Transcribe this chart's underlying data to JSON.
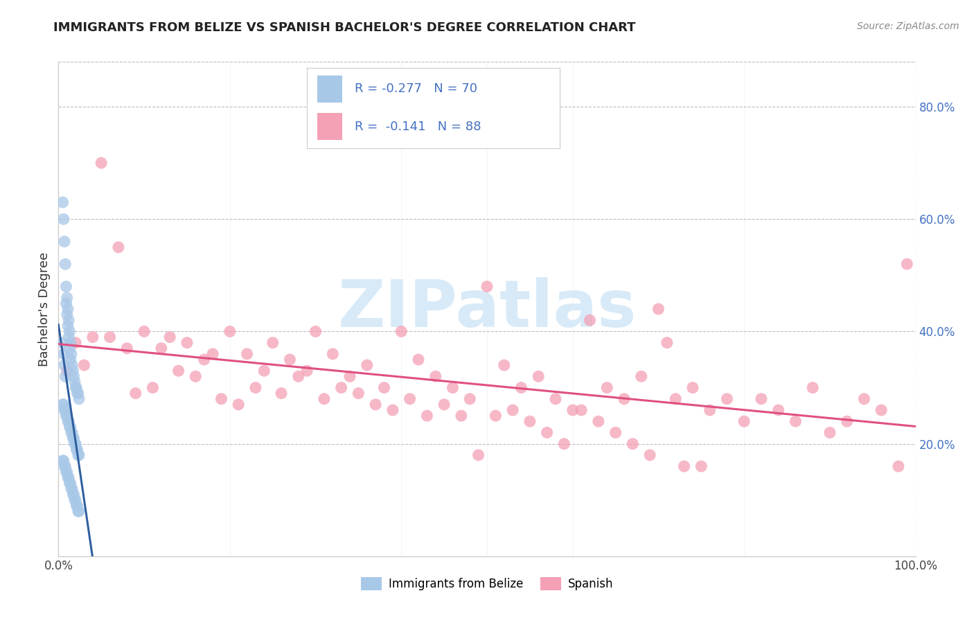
{
  "title": "IMMIGRANTS FROM BELIZE VS SPANISH BACHELOR'S DEGREE CORRELATION CHART",
  "source": "Source: ZipAtlas.com",
  "ylabel": "Bachelor's Degree",
  "legend_label_1": "Immigrants from Belize",
  "legend_label_2": "Spanish",
  "r1": -0.277,
  "n1": 70,
  "r2": -0.141,
  "n2": 88,
  "color_blue": "#a8c8e8",
  "color_pink": "#f4a0b5",
  "line_color_blue": "#3060a0",
  "line_color_pink": "#e05080",
  "watermark_color": "#d8eaf8",
  "xlim": [
    0.0,
    1.0
  ],
  "ylim": [
    0.0,
    0.88
  ],
  "blue_scatter_x": [
    0.005,
    0.006,
    0.007,
    0.008,
    0.009,
    0.01,
    0.011,
    0.012,
    0.013,
    0.014,
    0.015,
    0.016,
    0.017,
    0.018,
    0.019,
    0.02,
    0.021,
    0.022,
    0.023,
    0.024,
    0.005,
    0.006,
    0.007,
    0.008,
    0.009,
    0.01,
    0.011,
    0.012,
    0.013,
    0.014,
    0.015,
    0.016,
    0.017,
    0.018,
    0.019,
    0.02,
    0.021,
    0.022,
    0.023,
    0.024,
    0.005,
    0.006,
    0.007,
    0.008,
    0.009,
    0.01,
    0.011,
    0.012,
    0.013,
    0.014,
    0.015,
    0.016,
    0.017,
    0.018,
    0.019,
    0.02,
    0.021,
    0.022,
    0.023,
    0.024,
    0.005,
    0.006,
    0.007,
    0.008,
    0.009,
    0.01,
    0.011,
    0.012,
    0.013,
    0.014
  ],
  "blue_scatter_y": [
    0.63,
    0.6,
    0.56,
    0.52,
    0.48,
    0.46,
    0.44,
    0.42,
    0.4,
    0.38,
    0.36,
    0.34,
    0.33,
    0.32,
    0.31,
    0.3,
    0.3,
    0.29,
    0.29,
    0.28,
    0.27,
    0.27,
    0.26,
    0.26,
    0.25,
    0.25,
    0.24,
    0.24,
    0.23,
    0.23,
    0.22,
    0.22,
    0.21,
    0.21,
    0.2,
    0.2,
    0.19,
    0.19,
    0.18,
    0.18,
    0.17,
    0.17,
    0.16,
    0.16,
    0.15,
    0.15,
    0.14,
    0.14,
    0.13,
    0.13,
    0.12,
    0.12,
    0.11,
    0.11,
    0.1,
    0.1,
    0.09,
    0.09,
    0.08,
    0.08,
    0.38,
    0.36,
    0.34,
    0.32,
    0.45,
    0.43,
    0.41,
    0.39,
    0.37,
    0.35
  ],
  "pink_scatter_x": [
    0.01,
    0.02,
    0.04,
    0.05,
    0.07,
    0.08,
    0.09,
    0.1,
    0.12,
    0.13,
    0.15,
    0.17,
    0.18,
    0.2,
    0.22,
    0.24,
    0.25,
    0.27,
    0.29,
    0.3,
    0.32,
    0.34,
    0.36,
    0.38,
    0.4,
    0.42,
    0.44,
    0.46,
    0.48,
    0.5,
    0.52,
    0.54,
    0.56,
    0.58,
    0.6,
    0.62,
    0.64,
    0.66,
    0.68,
    0.7,
    0.72,
    0.74,
    0.76,
    0.78,
    0.8,
    0.82,
    0.84,
    0.86,
    0.88,
    0.9,
    0.92,
    0.94,
    0.96,
    0.98,
    0.03,
    0.06,
    0.11,
    0.14,
    0.16,
    0.19,
    0.21,
    0.23,
    0.26,
    0.28,
    0.31,
    0.33,
    0.35,
    0.37,
    0.39,
    0.41,
    0.43,
    0.45,
    0.47,
    0.49,
    0.51,
    0.53,
    0.55,
    0.57,
    0.59,
    0.61,
    0.63,
    0.65,
    0.67,
    0.69,
    0.71,
    0.73,
    0.75,
    0.99
  ],
  "pink_scatter_y": [
    0.33,
    0.38,
    0.39,
    0.7,
    0.55,
    0.37,
    0.29,
    0.4,
    0.37,
    0.39,
    0.38,
    0.35,
    0.36,
    0.4,
    0.36,
    0.33,
    0.38,
    0.35,
    0.33,
    0.4,
    0.36,
    0.32,
    0.34,
    0.3,
    0.4,
    0.35,
    0.32,
    0.3,
    0.28,
    0.48,
    0.34,
    0.3,
    0.32,
    0.28,
    0.26,
    0.42,
    0.3,
    0.28,
    0.32,
    0.44,
    0.28,
    0.3,
    0.26,
    0.28,
    0.24,
    0.28,
    0.26,
    0.24,
    0.3,
    0.22,
    0.24,
    0.28,
    0.26,
    0.16,
    0.34,
    0.39,
    0.3,
    0.33,
    0.32,
    0.28,
    0.27,
    0.3,
    0.29,
    0.32,
    0.28,
    0.3,
    0.29,
    0.27,
    0.26,
    0.28,
    0.25,
    0.27,
    0.25,
    0.18,
    0.25,
    0.26,
    0.24,
    0.22,
    0.2,
    0.26,
    0.24,
    0.22,
    0.2,
    0.18,
    0.38,
    0.16,
    0.16,
    0.52
  ]
}
